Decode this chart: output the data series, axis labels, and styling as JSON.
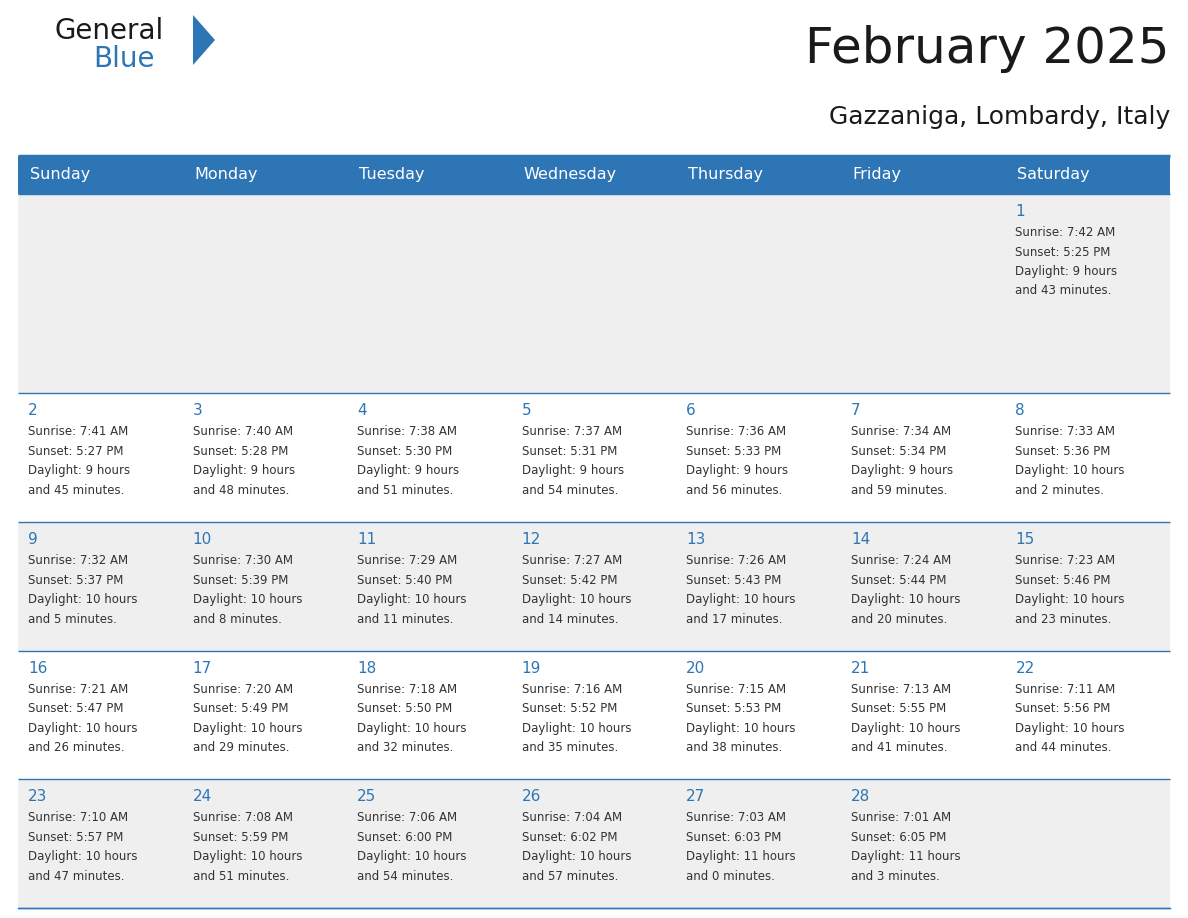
{
  "title": "February 2025",
  "subtitle": "Gazzaniga, Lombardy, Italy",
  "header_bg": "#2E75B6",
  "header_text": "#FFFFFF",
  "cell_bg_even": "#EFEFEF",
  "cell_bg_odd": "#FFFFFF",
  "border_color": "#2E75B6",
  "text_color": "#333333",
  "day_num_color": "#2E75B6",
  "day_headers": [
    "Sunday",
    "Monday",
    "Tuesday",
    "Wednesday",
    "Thursday",
    "Friday",
    "Saturday"
  ],
  "days": [
    {
      "day": 1,
      "col": 6,
      "row": 0,
      "sunrise": "7:42 AM",
      "sunset": "5:25 PM",
      "daylight": "9 hours and 43 minutes."
    },
    {
      "day": 2,
      "col": 0,
      "row": 1,
      "sunrise": "7:41 AM",
      "sunset": "5:27 PM",
      "daylight": "9 hours and 45 minutes."
    },
    {
      "day": 3,
      "col": 1,
      "row": 1,
      "sunrise": "7:40 AM",
      "sunset": "5:28 PM",
      "daylight": "9 hours and 48 minutes."
    },
    {
      "day": 4,
      "col": 2,
      "row": 1,
      "sunrise": "7:38 AM",
      "sunset": "5:30 PM",
      "daylight": "9 hours and 51 minutes."
    },
    {
      "day": 5,
      "col": 3,
      "row": 1,
      "sunrise": "7:37 AM",
      "sunset": "5:31 PM",
      "daylight": "9 hours and 54 minutes."
    },
    {
      "day": 6,
      "col": 4,
      "row": 1,
      "sunrise": "7:36 AM",
      "sunset": "5:33 PM",
      "daylight": "9 hours and 56 minutes."
    },
    {
      "day": 7,
      "col": 5,
      "row": 1,
      "sunrise": "7:34 AM",
      "sunset": "5:34 PM",
      "daylight": "9 hours and 59 minutes."
    },
    {
      "day": 8,
      "col": 6,
      "row": 1,
      "sunrise": "7:33 AM",
      "sunset": "5:36 PM",
      "daylight": "10 hours and 2 minutes."
    },
    {
      "day": 9,
      "col": 0,
      "row": 2,
      "sunrise": "7:32 AM",
      "sunset": "5:37 PM",
      "daylight": "10 hours and 5 minutes."
    },
    {
      "day": 10,
      "col": 1,
      "row": 2,
      "sunrise": "7:30 AM",
      "sunset": "5:39 PM",
      "daylight": "10 hours and 8 minutes."
    },
    {
      "day": 11,
      "col": 2,
      "row": 2,
      "sunrise": "7:29 AM",
      "sunset": "5:40 PM",
      "daylight": "10 hours and 11 minutes."
    },
    {
      "day": 12,
      "col": 3,
      "row": 2,
      "sunrise": "7:27 AM",
      "sunset": "5:42 PM",
      "daylight": "10 hours and 14 minutes."
    },
    {
      "day": 13,
      "col": 4,
      "row": 2,
      "sunrise": "7:26 AM",
      "sunset": "5:43 PM",
      "daylight": "10 hours and 17 minutes."
    },
    {
      "day": 14,
      "col": 5,
      "row": 2,
      "sunrise": "7:24 AM",
      "sunset": "5:44 PM",
      "daylight": "10 hours and 20 minutes."
    },
    {
      "day": 15,
      "col": 6,
      "row": 2,
      "sunrise": "7:23 AM",
      "sunset": "5:46 PM",
      "daylight": "10 hours and 23 minutes."
    },
    {
      "day": 16,
      "col": 0,
      "row": 3,
      "sunrise": "7:21 AM",
      "sunset": "5:47 PM",
      "daylight": "10 hours and 26 minutes."
    },
    {
      "day": 17,
      "col": 1,
      "row": 3,
      "sunrise": "7:20 AM",
      "sunset": "5:49 PM",
      "daylight": "10 hours and 29 minutes."
    },
    {
      "day": 18,
      "col": 2,
      "row": 3,
      "sunrise": "7:18 AM",
      "sunset": "5:50 PM",
      "daylight": "10 hours and 32 minutes."
    },
    {
      "day": 19,
      "col": 3,
      "row": 3,
      "sunrise": "7:16 AM",
      "sunset": "5:52 PM",
      "daylight": "10 hours and 35 minutes."
    },
    {
      "day": 20,
      "col": 4,
      "row": 3,
      "sunrise": "7:15 AM",
      "sunset": "5:53 PM",
      "daylight": "10 hours and 38 minutes."
    },
    {
      "day": 21,
      "col": 5,
      "row": 3,
      "sunrise": "7:13 AM",
      "sunset": "5:55 PM",
      "daylight": "10 hours and 41 minutes."
    },
    {
      "day": 22,
      "col": 6,
      "row": 3,
      "sunrise": "7:11 AM",
      "sunset": "5:56 PM",
      "daylight": "10 hours and 44 minutes."
    },
    {
      "day": 23,
      "col": 0,
      "row": 4,
      "sunrise": "7:10 AM",
      "sunset": "5:57 PM",
      "daylight": "10 hours and 47 minutes."
    },
    {
      "day": 24,
      "col": 1,
      "row": 4,
      "sunrise": "7:08 AM",
      "sunset": "5:59 PM",
      "daylight": "10 hours and 51 minutes."
    },
    {
      "day": 25,
      "col": 2,
      "row": 4,
      "sunrise": "7:06 AM",
      "sunset": "6:00 PM",
      "daylight": "10 hours and 54 minutes."
    },
    {
      "day": 26,
      "col": 3,
      "row": 4,
      "sunrise": "7:04 AM",
      "sunset": "6:02 PM",
      "daylight": "10 hours and 57 minutes."
    },
    {
      "day": 27,
      "col": 4,
      "row": 4,
      "sunrise": "7:03 AM",
      "sunset": "6:03 PM",
      "daylight": "11 hours and 0 minutes."
    },
    {
      "day": 28,
      "col": 5,
      "row": 4,
      "sunrise": "7:01 AM",
      "sunset": "6:05 PM",
      "daylight": "11 hours and 3 minutes."
    }
  ],
  "num_rows": 5,
  "num_cols": 7
}
